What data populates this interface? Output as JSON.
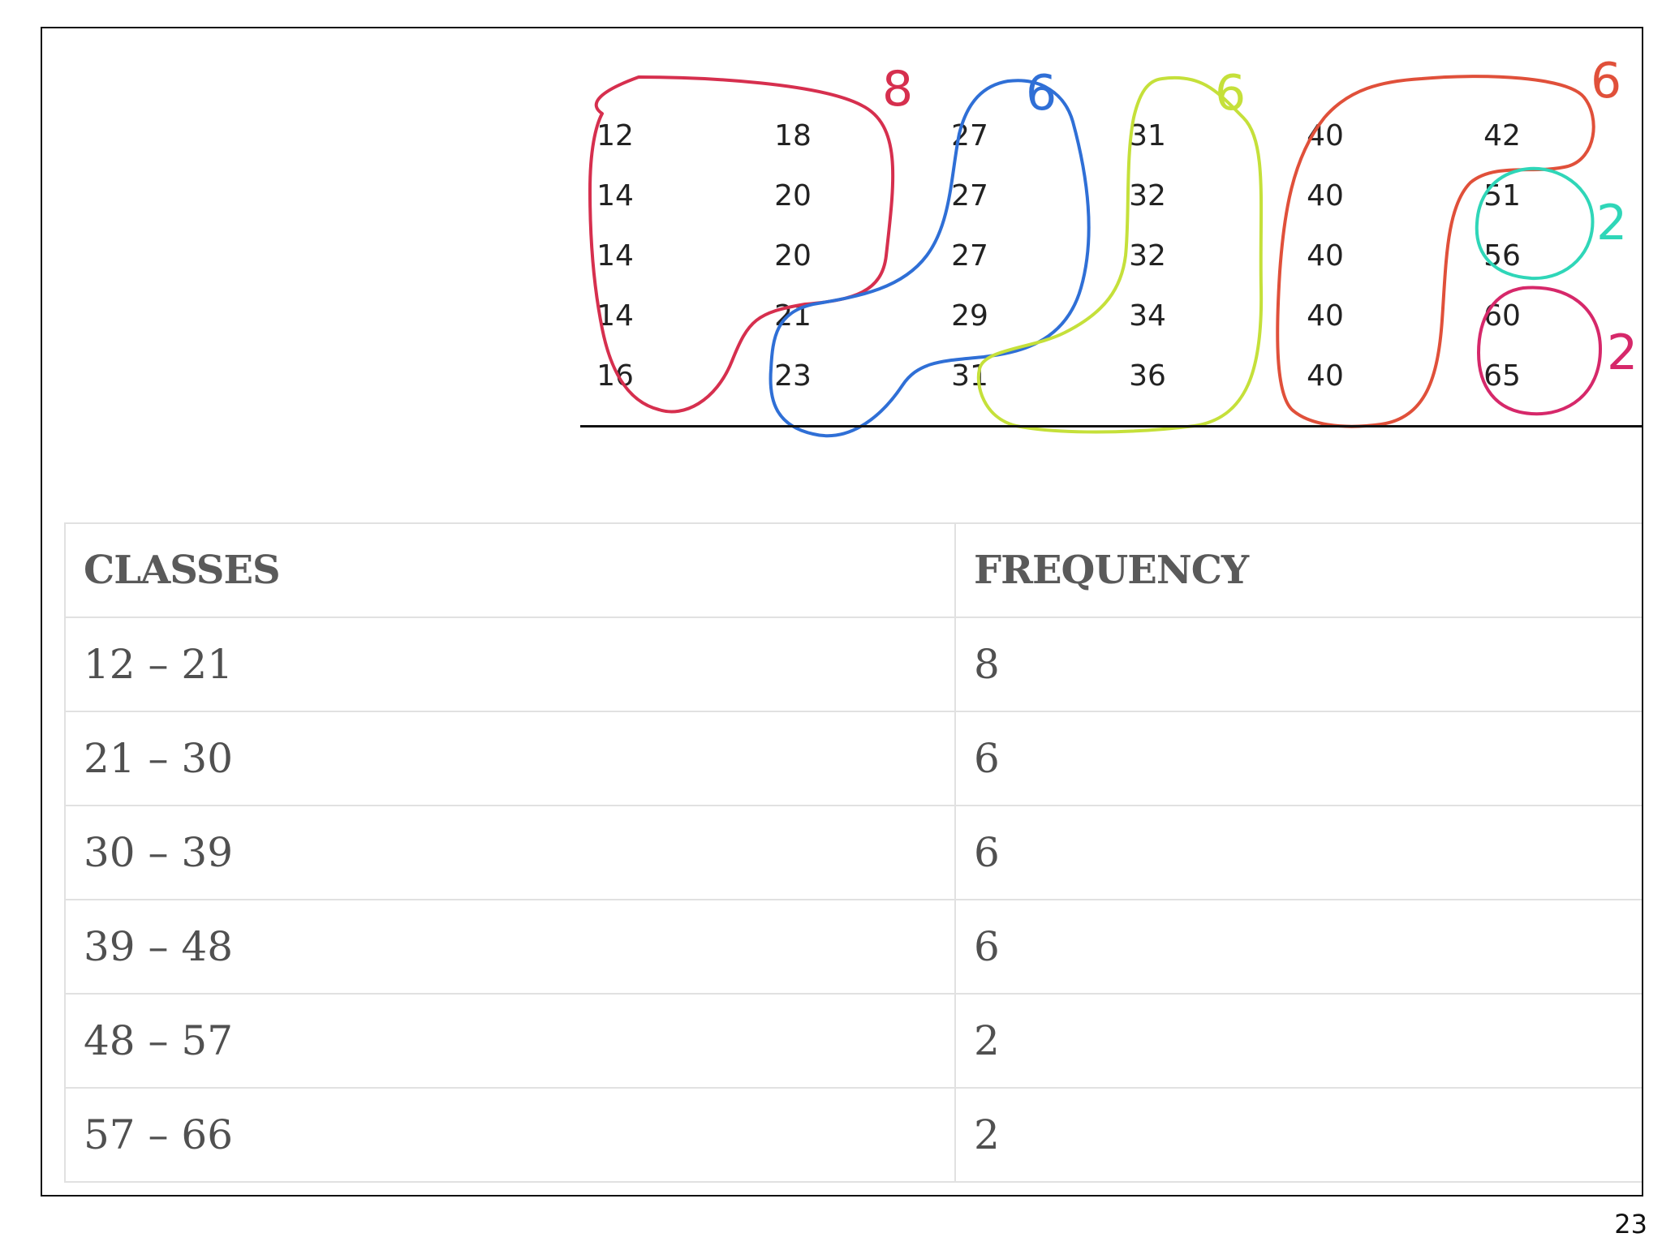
{
  "raw_data": {
    "columns": [
      [
        "12",
        "14",
        "14",
        "14",
        "16"
      ],
      [
        "18",
        "20",
        "20",
        "21",
        "23"
      ],
      [
        "27",
        "27",
        "27",
        "29",
        "31"
      ],
      [
        "31",
        "32",
        "32",
        "34",
        "36"
      ],
      [
        "40",
        "40",
        "40",
        "40",
        "40"
      ],
      [
        "42",
        "51",
        "56",
        "60",
        "65"
      ]
    ],
    "group_counts": [
      {
        "label": "8",
        "color": "#d62f4e"
      },
      {
        "label": "6",
        "color": "#2f6fd6"
      },
      {
        "label": "6",
        "color": "#c5e03a"
      },
      {
        "label": "6",
        "color": "#e0503a"
      },
      {
        "label": "2",
        "color": "#2fd6b8"
      },
      {
        "label": "2",
        "color": "#d6286a"
      }
    ]
  },
  "table": {
    "headers": [
      "CLASSES",
      "FREQUENCY"
    ],
    "rows": [
      {
        "classes": "12 – 21",
        "frequency": "8"
      },
      {
        "classes": "21 – 30",
        "frequency": "6"
      },
      {
        "classes": "30 – 39",
        "frequency": "6"
      },
      {
        "classes": "39 – 48",
        "frequency": "6"
      },
      {
        "classes": "48 – 57",
        "frequency": "2"
      },
      {
        "classes": "57 – 66",
        "frequency": "2"
      }
    ]
  },
  "page_number": "23"
}
